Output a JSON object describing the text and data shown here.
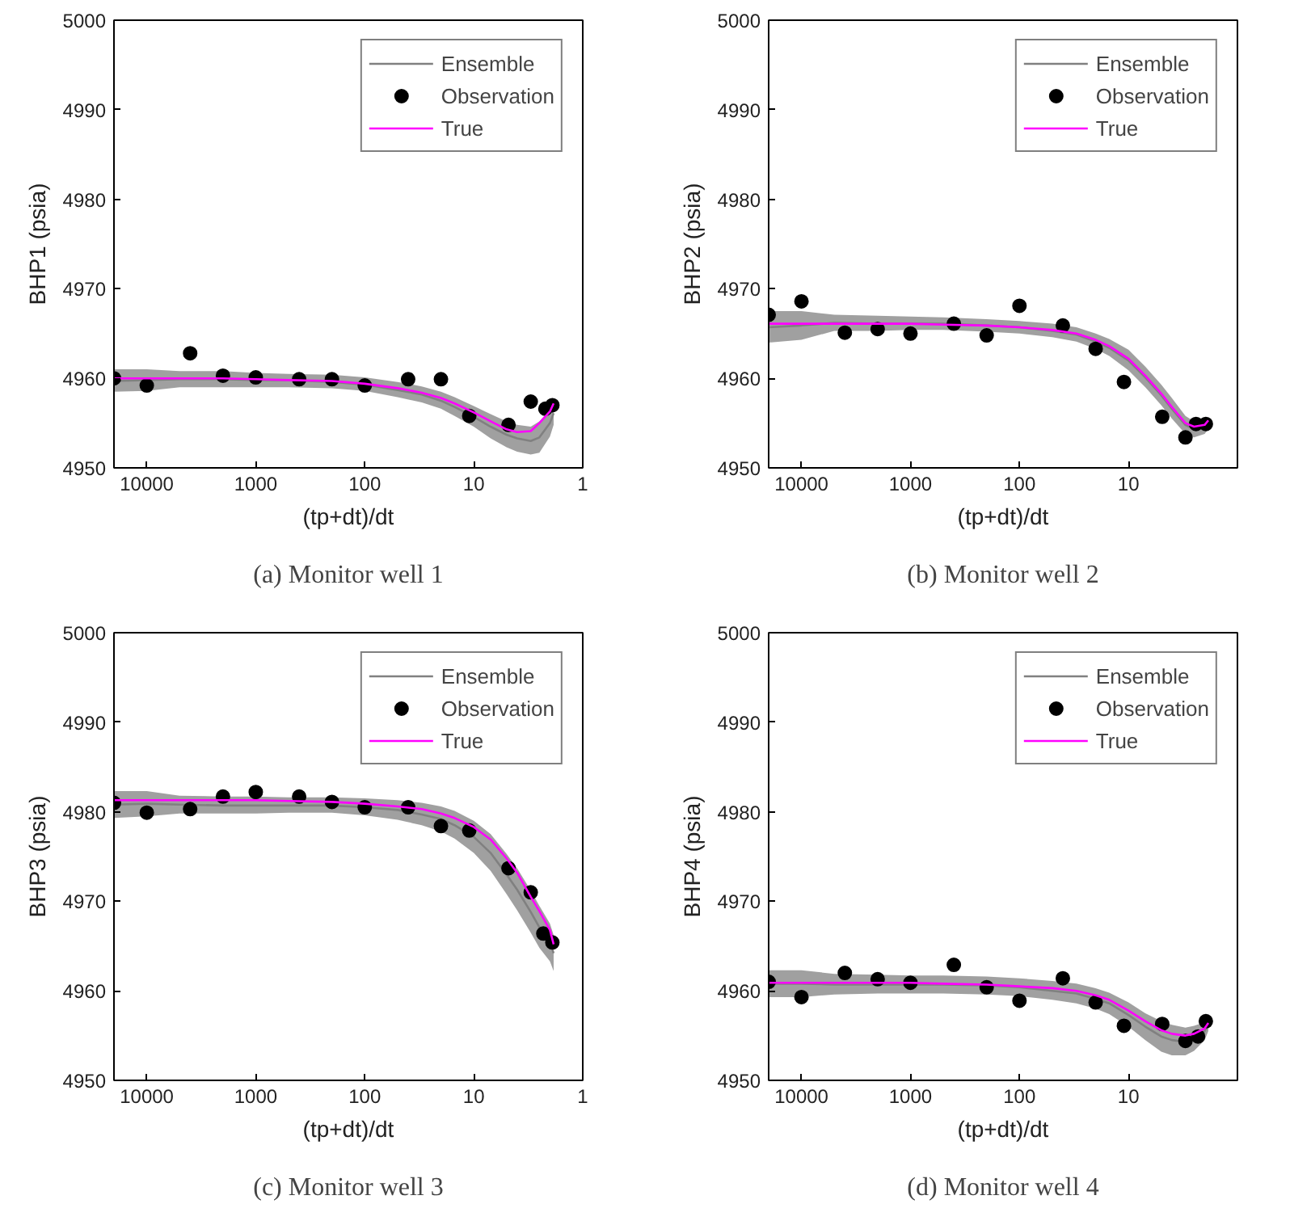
{
  "chart_data": [
    {
      "type": "line",
      "title": "(a) Monitor well 1",
      "xlabel": "(tp+dt)/dt",
      "ylabel": "BHP1 (psia)",
      "log": "x",
      "xlim": [
        20000,
        1
      ],
      "ylim": [
        4950,
        5000
      ],
      "xticks": [
        10000,
        1000,
        100,
        10,
        1
      ],
      "yticks": [
        4950,
        4960,
        4970,
        4980,
        4990,
        5000
      ],
      "legend": "top right",
      "grid": false,
      "series": [
        {
          "name": "Ensemble",
          "color": "#808080",
          "x": [
            20000,
            10000,
            5000,
            2000,
            1000,
            500,
            200,
            100,
            50,
            30,
            20,
            15,
            10,
            7,
            5,
            4,
            3,
            2.5,
            2,
            1.85
          ],
          "values": [
            4959.7,
            4959.8,
            4959.9,
            4959.9,
            4959.8,
            4959.8,
            4959.6,
            4959.3,
            4958.7,
            4958.2,
            4957.5,
            4956.8,
            4955.7,
            4954.6,
            4953.7,
            4953.3,
            4953,
            4953.4,
            4955,
            4956.1
          ],
          "lower": [
            4958.5,
            4958.6,
            4959.0,
            4959.0,
            4959.0,
            4959.0,
            4958.9,
            4958.6,
            4957.9,
            4957.3,
            4956.6,
            4955.8,
            4954.6,
            4953.3,
            4952.3,
            4951.8,
            4951.5,
            4951.7,
            4953.5,
            4954.8
          ],
          "upper": [
            4961,
            4961,
            4960.8,
            4960.8,
            4960.6,
            4960.5,
            4960.4,
            4960.1,
            4959.6,
            4959.1,
            4958.5,
            4957.9,
            4956.9,
            4956,
            4955.2,
            4954.8,
            4954.6,
            4955.2,
            4956.5,
            4957.4
          ]
        },
        {
          "name": "Observation",
          "type": "scatter",
          "marker": "circle",
          "color": "#000000",
          "x": [
            20000,
            10000,
            4000,
            2000,
            1000,
            400,
            200,
            100,
            40,
            20,
            11,
            4.8,
            3,
            2.2,
            1.9
          ],
          "values": [
            4960.0,
            4959.2,
            4962.8,
            4960.3,
            4960.1,
            4959.9,
            4959.9,
            4959.2,
            4959.9,
            4959.9,
            4955.8,
            4954.8,
            4957.4,
            4956.6,
            4957.0
          ]
        },
        {
          "name": "True",
          "line_style": "solid",
          "color": "#ff00ff",
          "x": [
            20000,
            10000,
            5000,
            2000,
            1000,
            500,
            200,
            100,
            50,
            30,
            20,
            15,
            10,
            7,
            5,
            4,
            3,
            2.5,
            2,
            1.85
          ],
          "values": [
            4960,
            4960,
            4960,
            4960,
            4959.9,
            4959.8,
            4959.7,
            4959.4,
            4958.9,
            4958.4,
            4957.8,
            4957.2,
            4956.2,
            4955.2,
            4954.3,
            4954,
            4954.1,
            4955,
            4956.3,
            4957.2
          ]
        }
      ]
    },
    {
      "type": "line",
      "title": "(b) Monitor well 2",
      "xlabel": "(tp+dt)/dt",
      "ylabel": "BHP2 (psia)",
      "log": "x",
      "xlim": [
        20000,
        1
      ],
      "ylim": [
        4950,
        5000
      ],
      "xticks": [
        10000,
        1000,
        100,
        10
      ],
      "yticks": [
        4950,
        4960,
        4970,
        4980,
        4990,
        5000
      ],
      "legend": "top right",
      "grid": false,
      "series": [
        {
          "name": "Ensemble",
          "color": "#808080",
          "x": [
            20000,
            10000,
            5000,
            2000,
            1000,
            500,
            200,
            100,
            50,
            30,
            20,
            15,
            10,
            7,
            5,
            4,
            3,
            2.5,
            2,
            1.85
          ],
          "values": [
            4965.7,
            4965.9,
            4966.2,
            4966.1,
            4966.1,
            4966.1,
            4965.9,
            4965.7,
            4965.3,
            4964.9,
            4964.1,
            4963.4,
            4962,
            4960.1,
            4958.1,
            4956.6,
            4954.8,
            4954.3,
            4954.5,
            4955
          ],
          "lower": [
            4964,
            4964.3,
            4965.3,
            4965.3,
            4965.4,
            4965.4,
            4965.2,
            4965.0,
            4964.6,
            4964.1,
            4963.3,
            4962.5,
            4960.9,
            4959,
            4957.0,
            4955.5,
            4953.8,
            4953.4,
            4953.8,
            4954.3
          ],
          "upper": [
            4967.5,
            4967.5,
            4967.1,
            4967.0,
            4966.9,
            4966.8,
            4966.6,
            4966.4,
            4966.1,
            4965.7,
            4965.0,
            4964.4,
            4963.2,
            4961.3,
            4959.3,
            4957.8,
            4955.8,
            4955.2,
            4955.3,
            4955.6
          ]
        },
        {
          "name": "Observation",
          "type": "scatter",
          "marker": "circle",
          "color": "#000000",
          "x": [
            20000,
            10000,
            4000,
            2000,
            1000,
            400,
            200,
            100,
            40,
            20,
            11,
            4.9,
            3,
            2.4,
            1.95
          ],
          "values": [
            4967.1,
            4968.6,
            4965.1,
            4965.5,
            4965.0,
            4966.1,
            4964.8,
            4968.1,
            4965.9,
            4963.3,
            4959.6,
            4955.7,
            4953.4,
            4954.9,
            4954.9
          ]
        },
        {
          "name": "True",
          "line_style": "solid",
          "color": "#ff00ff",
          "x": [
            20000,
            10000,
            5000,
            2000,
            1000,
            500,
            200,
            100,
            50,
            30,
            20,
            15,
            10,
            7,
            5,
            4,
            3,
            2.5,
            2,
            1.85
          ],
          "values": [
            4966.1,
            4966.1,
            4966.1,
            4966.1,
            4966.1,
            4966.0,
            4965.9,
            4965.7,
            4965.4,
            4965,
            4964.3,
            4963.6,
            4962.2,
            4960.3,
            4958.3,
            4956.8,
            4955.0,
            4954.6,
            4954.8,
            4955.3
          ]
        }
      ]
    },
    {
      "type": "line",
      "title": "(c) Monitor well 3",
      "xlabel": "(tp+dt)/dt",
      "ylabel": "BHP3 (psia)",
      "log": "x",
      "xlim": [
        20000,
        1
      ],
      "ylim": [
        4950,
        5000
      ],
      "xticks": [
        10000,
        1000,
        100,
        10,
        1
      ],
      "yticks": [
        4950,
        4960,
        4970,
        4980,
        4990,
        5000
      ],
      "legend": "top right",
      "grid": false,
      "series": [
        {
          "name": "Ensemble",
          "color": "#808080",
          "x": [
            20000,
            10000,
            5000,
            2000,
            1000,
            500,
            200,
            100,
            50,
            30,
            20,
            15,
            10,
            7,
            5,
            4,
            3,
            2.5,
            2,
            1.85
          ],
          "values": [
            4980.8,
            4980.9,
            4980.8,
            4980.7,
            4980.7,
            4980.7,
            4980.7,
            4980.5,
            4980.2,
            4979.7,
            4979.2,
            4978.5,
            4977.2,
            4975.4,
            4973,
            4971.3,
            4968.8,
            4967.1,
            4965.4,
            4964.2
          ],
          "lower": [
            4979.3,
            4979.5,
            4979.8,
            4979.8,
            4979.8,
            4979.9,
            4979.9,
            4979.6,
            4979.1,
            4978.5,
            4977.8,
            4977.0,
            4975.4,
            4973.4,
            4970.8,
            4969,
            4966.5,
            4964.8,
            4963.3,
            4962.2
          ],
          "upper": [
            4982.3,
            4982.3,
            4981.8,
            4981.7,
            4981.7,
            4981.6,
            4981.6,
            4981.5,
            4981.3,
            4981.0,
            4980.6,
            4980.1,
            4979.0,
            4977.5,
            4975.3,
            4973.7,
            4971.2,
            4969.5,
            4967.5,
            4966.2
          ]
        },
        {
          "name": "Observation",
          "type": "scatter",
          "marker": "circle",
          "color": "#000000",
          "x": [
            20000,
            10000,
            4000,
            2000,
            1000,
            400,
            200,
            100,
            40,
            20,
            11,
            4.8,
            3,
            2.3,
            1.9
          ],
          "values": [
            4981.0,
            4979.9,
            4980.3,
            4981.7,
            4982.2,
            4981.7,
            4981.1,
            4980.5,
            4980.5,
            4978.4,
            4977.9,
            4973.7,
            4971.0,
            4966.4,
            4965.4
          ]
        },
        {
          "name": "True",
          "line_style": "solid",
          "color": "#ff00ff",
          "x": [
            20000,
            10000,
            5000,
            2000,
            1000,
            500,
            200,
            100,
            50,
            30,
            20,
            15,
            10,
            7,
            5,
            4,
            3,
            2.5,
            2,
            1.85
          ],
          "values": [
            4981.3,
            4981.3,
            4981.3,
            4981.3,
            4981.3,
            4981.2,
            4981.1,
            4980.9,
            4980.6,
            4980.3,
            4979.8,
            4979.3,
            4978.3,
            4976.9,
            4974.8,
            4973.2,
            4970.5,
            4968.9,
            4966.8,
            4965.2
          ]
        }
      ]
    },
    {
      "type": "line",
      "title": "(d) Monitor well 4",
      "xlabel": "(tp+dt)/dt",
      "ylabel": "BHP4 (psia)",
      "log": "x",
      "xlim": [
        20000,
        1
      ],
      "ylim": [
        4950,
        5000
      ],
      "xticks": [
        10000,
        1000,
        100,
        10
      ],
      "yticks": [
        4950,
        4960,
        4970,
        4980,
        4990,
        5000
      ],
      "legend": "top right",
      "grid": false,
      "series": [
        {
          "name": "Ensemble",
          "color": "#808080",
          "x": [
            20000,
            10000,
            5000,
            2000,
            1000,
            500,
            200,
            100,
            50,
            30,
            20,
            15,
            10,
            7,
            5,
            4,
            3,
            2.5,
            2,
            1.85
          ],
          "values": [
            4960.8,
            4960.8,
            4960.7,
            4960.7,
            4960.7,
            4960.7,
            4960.6,
            4960.4,
            4960,
            4959.7,
            4959.1,
            4958.6,
            4957.3,
            4956,
            4954.9,
            4954.5,
            4954.3,
            4954.7,
            4955.5,
            4956.2
          ],
          "lower": [
            4959.3,
            4959.3,
            4959.6,
            4959.7,
            4959.7,
            4959.7,
            4959.6,
            4959.4,
            4959.0,
            4958.6,
            4958.0,
            4957.4,
            4956.0,
            4954.5,
            4953.2,
            4952.8,
            4952.8,
            4953.3,
            4954.5,
            4955.5
          ],
          "upper": [
            4962.3,
            4962.3,
            4961.9,
            4961.8,
            4961.7,
            4961.7,
            4961.6,
            4961.4,
            4961.1,
            4960.8,
            4960.3,
            4959.8,
            4958.7,
            4957.5,
            4956.6,
            4956.2,
            4955.9,
            4956.1,
            4956.5,
            4957.0
          ]
        },
        {
          "name": "Observation",
          "type": "scatter",
          "marker": "circle",
          "color": "#000000",
          "x": [
            20000,
            10000,
            4000,
            2000,
            1000,
            400,
            200,
            100,
            40,
            20,
            11,
            4.9,
            3,
            2.3,
            1.95
          ],
          "values": [
            4961.0,
            4959.3,
            4962.0,
            4961.3,
            4960.9,
            4962.9,
            4960.4,
            4958.9,
            4961.4,
            4958.7,
            4956.1,
            4956.3,
            4954.4,
            4954.9,
            4956.6
          ]
        },
        {
          "name": "True",
          "line_style": "solid",
          "color": "#ff00ff",
          "x": [
            20000,
            10000,
            5000,
            2000,
            1000,
            500,
            200,
            100,
            50,
            30,
            20,
            15,
            10,
            7,
            5,
            4,
            3,
            2.5,
            2,
            1.85
          ],
          "values": [
            4960.9,
            4960.9,
            4960.9,
            4960.9,
            4960.9,
            4960.8,
            4960.7,
            4960.5,
            4960.3,
            4960.0,
            4959.5,
            4959.0,
            4957.8,
            4956.6,
            4955.6,
            4955.2,
            4955.0,
            4955.2,
            4955.8,
            4956.4
          ]
        }
      ]
    }
  ]
}
